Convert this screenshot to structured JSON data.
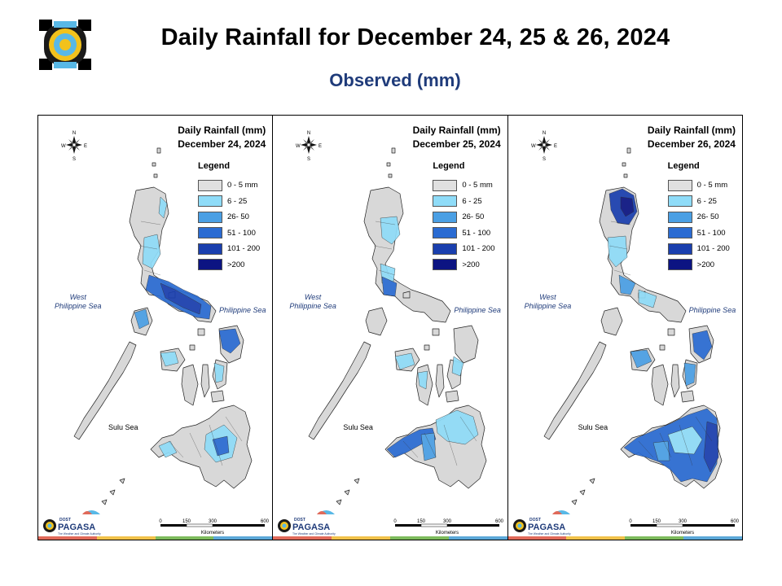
{
  "header": {
    "title": "Daily Rainfall for December 24, 25 & 26, 2024",
    "subtitle": "Observed (mm)",
    "logo_icon": "pagasa-seal-icon"
  },
  "legend": {
    "title": "Legend",
    "items": [
      {
        "label": "0 - 5 mm",
        "color": "#e0e0e0"
      },
      {
        "label": "6 - 25",
        "color": "#8fdcf8"
      },
      {
        "label": "26- 50",
        "color": "#4a9fe4"
      },
      {
        "label": "51 - 100",
        "color": "#2a6bd2"
      },
      {
        "label": "101 - 200",
        "color": "#1a3fae"
      },
      {
        "label": ">200",
        "color": "#0c1482"
      }
    ]
  },
  "panels": [
    {
      "title_line1": "Daily Rainfall (mm)",
      "title_line2": "December 24, 2024"
    },
    {
      "title_line1": "Daily Rainfall (mm)",
      "title_line2": "December 25, 2024"
    },
    {
      "title_line1": "Daily Rainfall (mm)",
      "title_line2": "December 26, 2024"
    }
  ],
  "labels": {
    "west_sea_1": "West",
    "west_sea_2": "Philippine Sea",
    "east_sea": "Philippine Sea",
    "sulu_sea": "Sulu Sea",
    "compass_n": "N",
    "compass_e": "E",
    "compass_s": "S",
    "compass_w": "W",
    "scale_0": "0",
    "scale_150": "150",
    "scale_300": "300",
    "scale_600": "600",
    "scale_unit": "Kilometers",
    "brand_small": "DOST",
    "brand_name": "PAGASA",
    "brand_tagline": "The Weather and Climate Authority"
  },
  "stripe_colors": [
    "#e06a5a",
    "#f1c24a",
    "#7dbb5c",
    "#5ba8d8"
  ]
}
